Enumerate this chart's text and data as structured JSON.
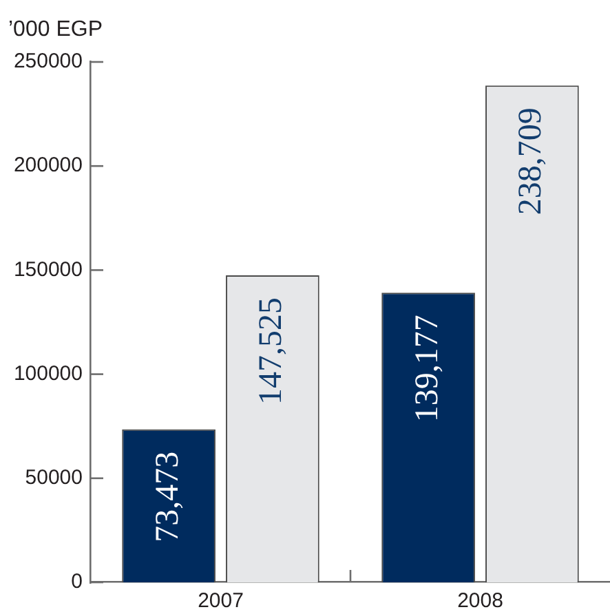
{
  "chart_data": {
    "type": "bar",
    "ylabel": "’000 EGP",
    "categories": [
      "2007",
      "2008"
    ],
    "series": [
      {
        "color": "#002b5e",
        "values": [
          73473,
          139177
        ],
        "value_labels": [
          "73,473",
          "139,177"
        ]
      },
      {
        "color": "#e6e7e9",
        "values": [
          147525,
          238709
        ],
        "value_labels": [
          "147,525",
          "238,709"
        ]
      }
    ],
    "ylim": [
      0,
      250000
    ],
    "yticks": [
      0,
      50000,
      100000,
      150000,
      200000,
      250000
    ],
    "grid": false,
    "legend": false
  }
}
